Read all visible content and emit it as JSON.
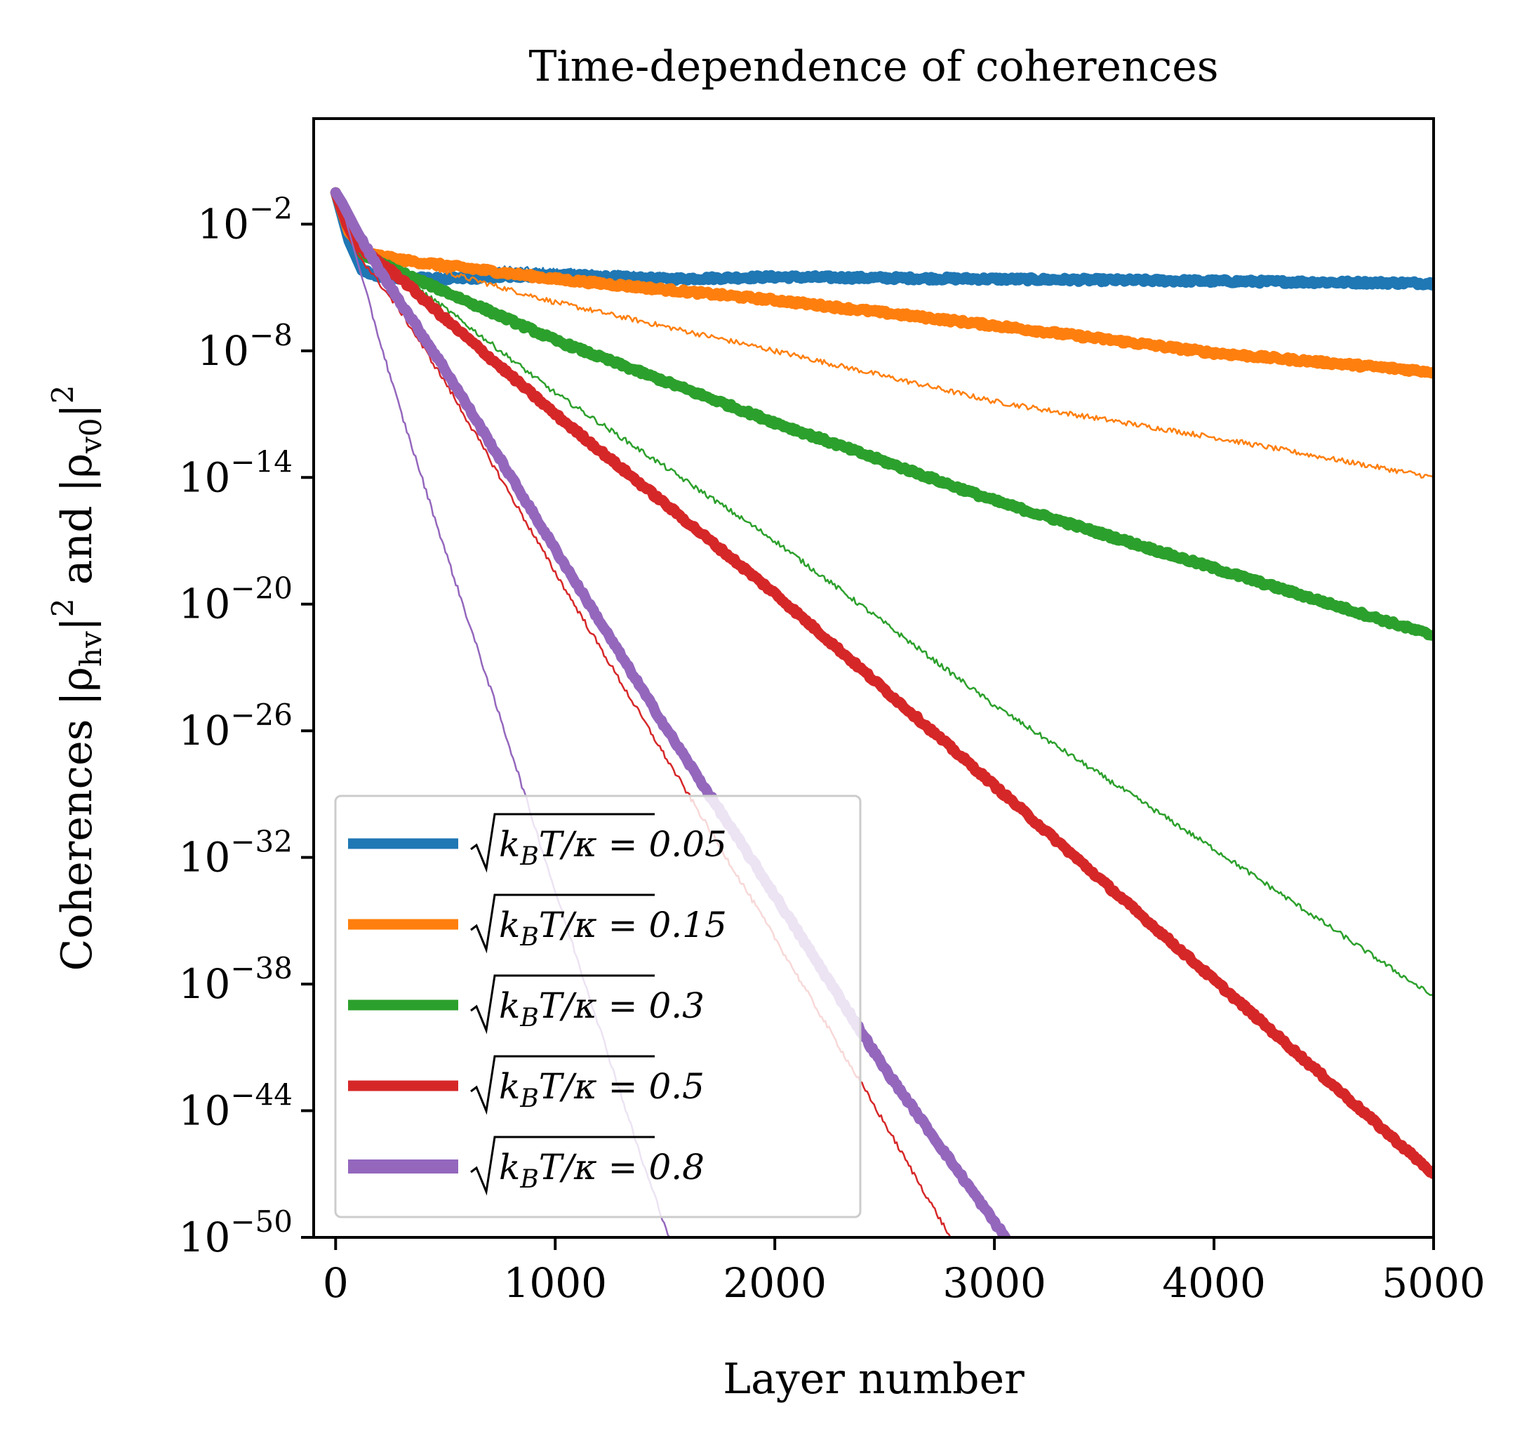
{
  "chart_data": {
    "type": "line",
    "title": "Time-dependence of coherences",
    "xlabel": "Layer number",
    "ylabel": "Coherences |ρ_hv|² and |ρ_v0|²",
    "yscale": "log",
    "xlim": [
      -100,
      5000
    ],
    "ylim_exponent": [
      -50,
      3
    ],
    "xticks": [
      0,
      1000,
      2000,
      3000,
      4000,
      5000
    ],
    "xtick_labels": [
      "0",
      "1000",
      "2000",
      "3000",
      "4000",
      "5000"
    ],
    "yticks_exponent": [
      -2,
      -8,
      -14,
      -20,
      -26,
      -32,
      -38,
      -44,
      -50
    ],
    "ytick_labels": [
      {
        "base": "10",
        "exp": "−2"
      },
      {
        "base": "10",
        "exp": "−8"
      },
      {
        "base": "10",
        "exp": "−14"
      },
      {
        "base": "10",
        "exp": "−20"
      },
      {
        "base": "10",
        "exp": "−26"
      },
      {
        "base": "10",
        "exp": "−32"
      },
      {
        "base": "10",
        "exp": "−38"
      },
      {
        "base": "10",
        "exp": "−44"
      },
      {
        "base": "10",
        "exp": "−50"
      }
    ],
    "legend_position": "lower-left",
    "series": [
      {
        "name": "√(k_B T/κ) = 0.05",
        "legend_prefix": "k",
        "legend_sub": "B",
        "legend_suffix": "T/κ = 0.05",
        "color": "#1f77b4",
        "thick": {
          "x": [
            0,
            60,
            120,
            200,
            500,
            1000,
            1500,
            2000,
            3000,
            4000,
            5000
          ],
          "log10_y": [
            -0.5,
            -2.8,
            -4.2,
            -4.5,
            -4.6,
            -4.4,
            -4.6,
            -4.5,
            -4.6,
            -4.7,
            -4.8
          ]
        },
        "thin": {
          "x": [
            0,
            60,
            120,
            200,
            500,
            1000,
            1500
          ],
          "log10_y": [
            -0.5,
            -2.6,
            -3.6,
            -3.8,
            -4.0,
            -4.2,
            -4.4
          ]
        }
      },
      {
        "name": "√(k_B T/κ) = 0.15",
        "legend_prefix": "k",
        "legend_sub": "B",
        "legend_suffix": "T/κ = 0.15",
        "color": "#ff7f0e",
        "thick": {
          "x": [
            0,
            60,
            150,
            300,
            1000,
            2000,
            3000,
            4000,
            5000
          ],
          "log10_y": [
            -0.5,
            -2.4,
            -3.4,
            -3.7,
            -4.6,
            -5.6,
            -6.8,
            -8.1,
            -9.0
          ]
        },
        "thin": {
          "x": [
            0,
            60,
            150,
            300,
            1000,
            2000,
            3000,
            4000,
            5000
          ],
          "log10_y": [
            -0.5,
            -2.4,
            -3.3,
            -3.7,
            -5.7,
            -8.0,
            -10.4,
            -12.1,
            -14.0
          ]
        }
      },
      {
        "name": "√(k_B T/κ) = 0.3",
        "legend_prefix": "k",
        "legend_sub": "B",
        "legend_suffix": "T/κ = 0.3",
        "color": "#2ca02c",
        "thick": {
          "x": [
            0,
            50,
            130,
            300,
            500,
            1000,
            2000,
            3000,
            4000,
            5000
          ],
          "log10_y": [
            -0.5,
            -2.0,
            -3.5,
            -4.3,
            -5.2,
            -7.5,
            -11.4,
            -15.1,
            -18.3,
            -21.5
          ]
        },
        "thin": {
          "x": [
            0,
            50,
            130,
            300,
            500,
            1000,
            2000,
            3000,
            4000,
            5000
          ],
          "log10_y": [
            -0.5,
            -2.0,
            -3.5,
            -4.5,
            -6.0,
            -10.0,
            -17.0,
            -24.8,
            -31.6,
            -38.6
          ]
        }
      },
      {
        "name": "√(k_B T/κ) = 0.5",
        "legend_prefix": "k",
        "legend_sub": "B",
        "legend_suffix": "T/κ = 0.5",
        "color": "#d62728",
        "thick": {
          "x": [
            0,
            50,
            100,
            300,
            500,
            1000,
            2000,
            3000,
            4000,
            5000
          ],
          "log10_y": [
            -0.5,
            -2.0,
            -3.0,
            -4.6,
            -6.5,
            -11.0,
            -19.5,
            -28.6,
            -37.8,
            -47.0
          ]
        },
        "thin": {
          "x": [
            0,
            50,
            100,
            300,
            500,
            1000,
            1500,
            2000,
            2500,
            2800
          ],
          "log10_y": [
            -0.5,
            -2.0,
            -3.4,
            -6.2,
            -9.5,
            -18.5,
            -27.2,
            -35.8,
            -44.6,
            -50.0
          ]
        }
      },
      {
        "name": "√(k_B T/κ) = 0.8",
        "legend_prefix": "k",
        "legend_sub": "B",
        "legend_suffix": "T/κ = 0.8",
        "color": "#9467bd",
        "thick": {
          "x": [
            0,
            30,
            100,
            200,
            500,
            1000,
            1500,
            2000,
            2500,
            3050
          ],
          "log10_y": [
            -0.5,
            -1.0,
            -2.4,
            -4.2,
            -8.9,
            -17.4,
            -25.8,
            -33.8,
            -42.0,
            -50.0
          ]
        },
        "thin": {
          "x": [
            0,
            30,
            100,
            200,
            300,
            500,
            800,
            1000,
            1200,
            1400,
            1520
          ],
          "log10_y": [
            -0.5,
            -1.2,
            -3.8,
            -7.5,
            -11.0,
            -17.5,
            -27.0,
            -33.6,
            -40.0,
            -46.5,
            -50.0
          ]
        }
      }
    ]
  }
}
